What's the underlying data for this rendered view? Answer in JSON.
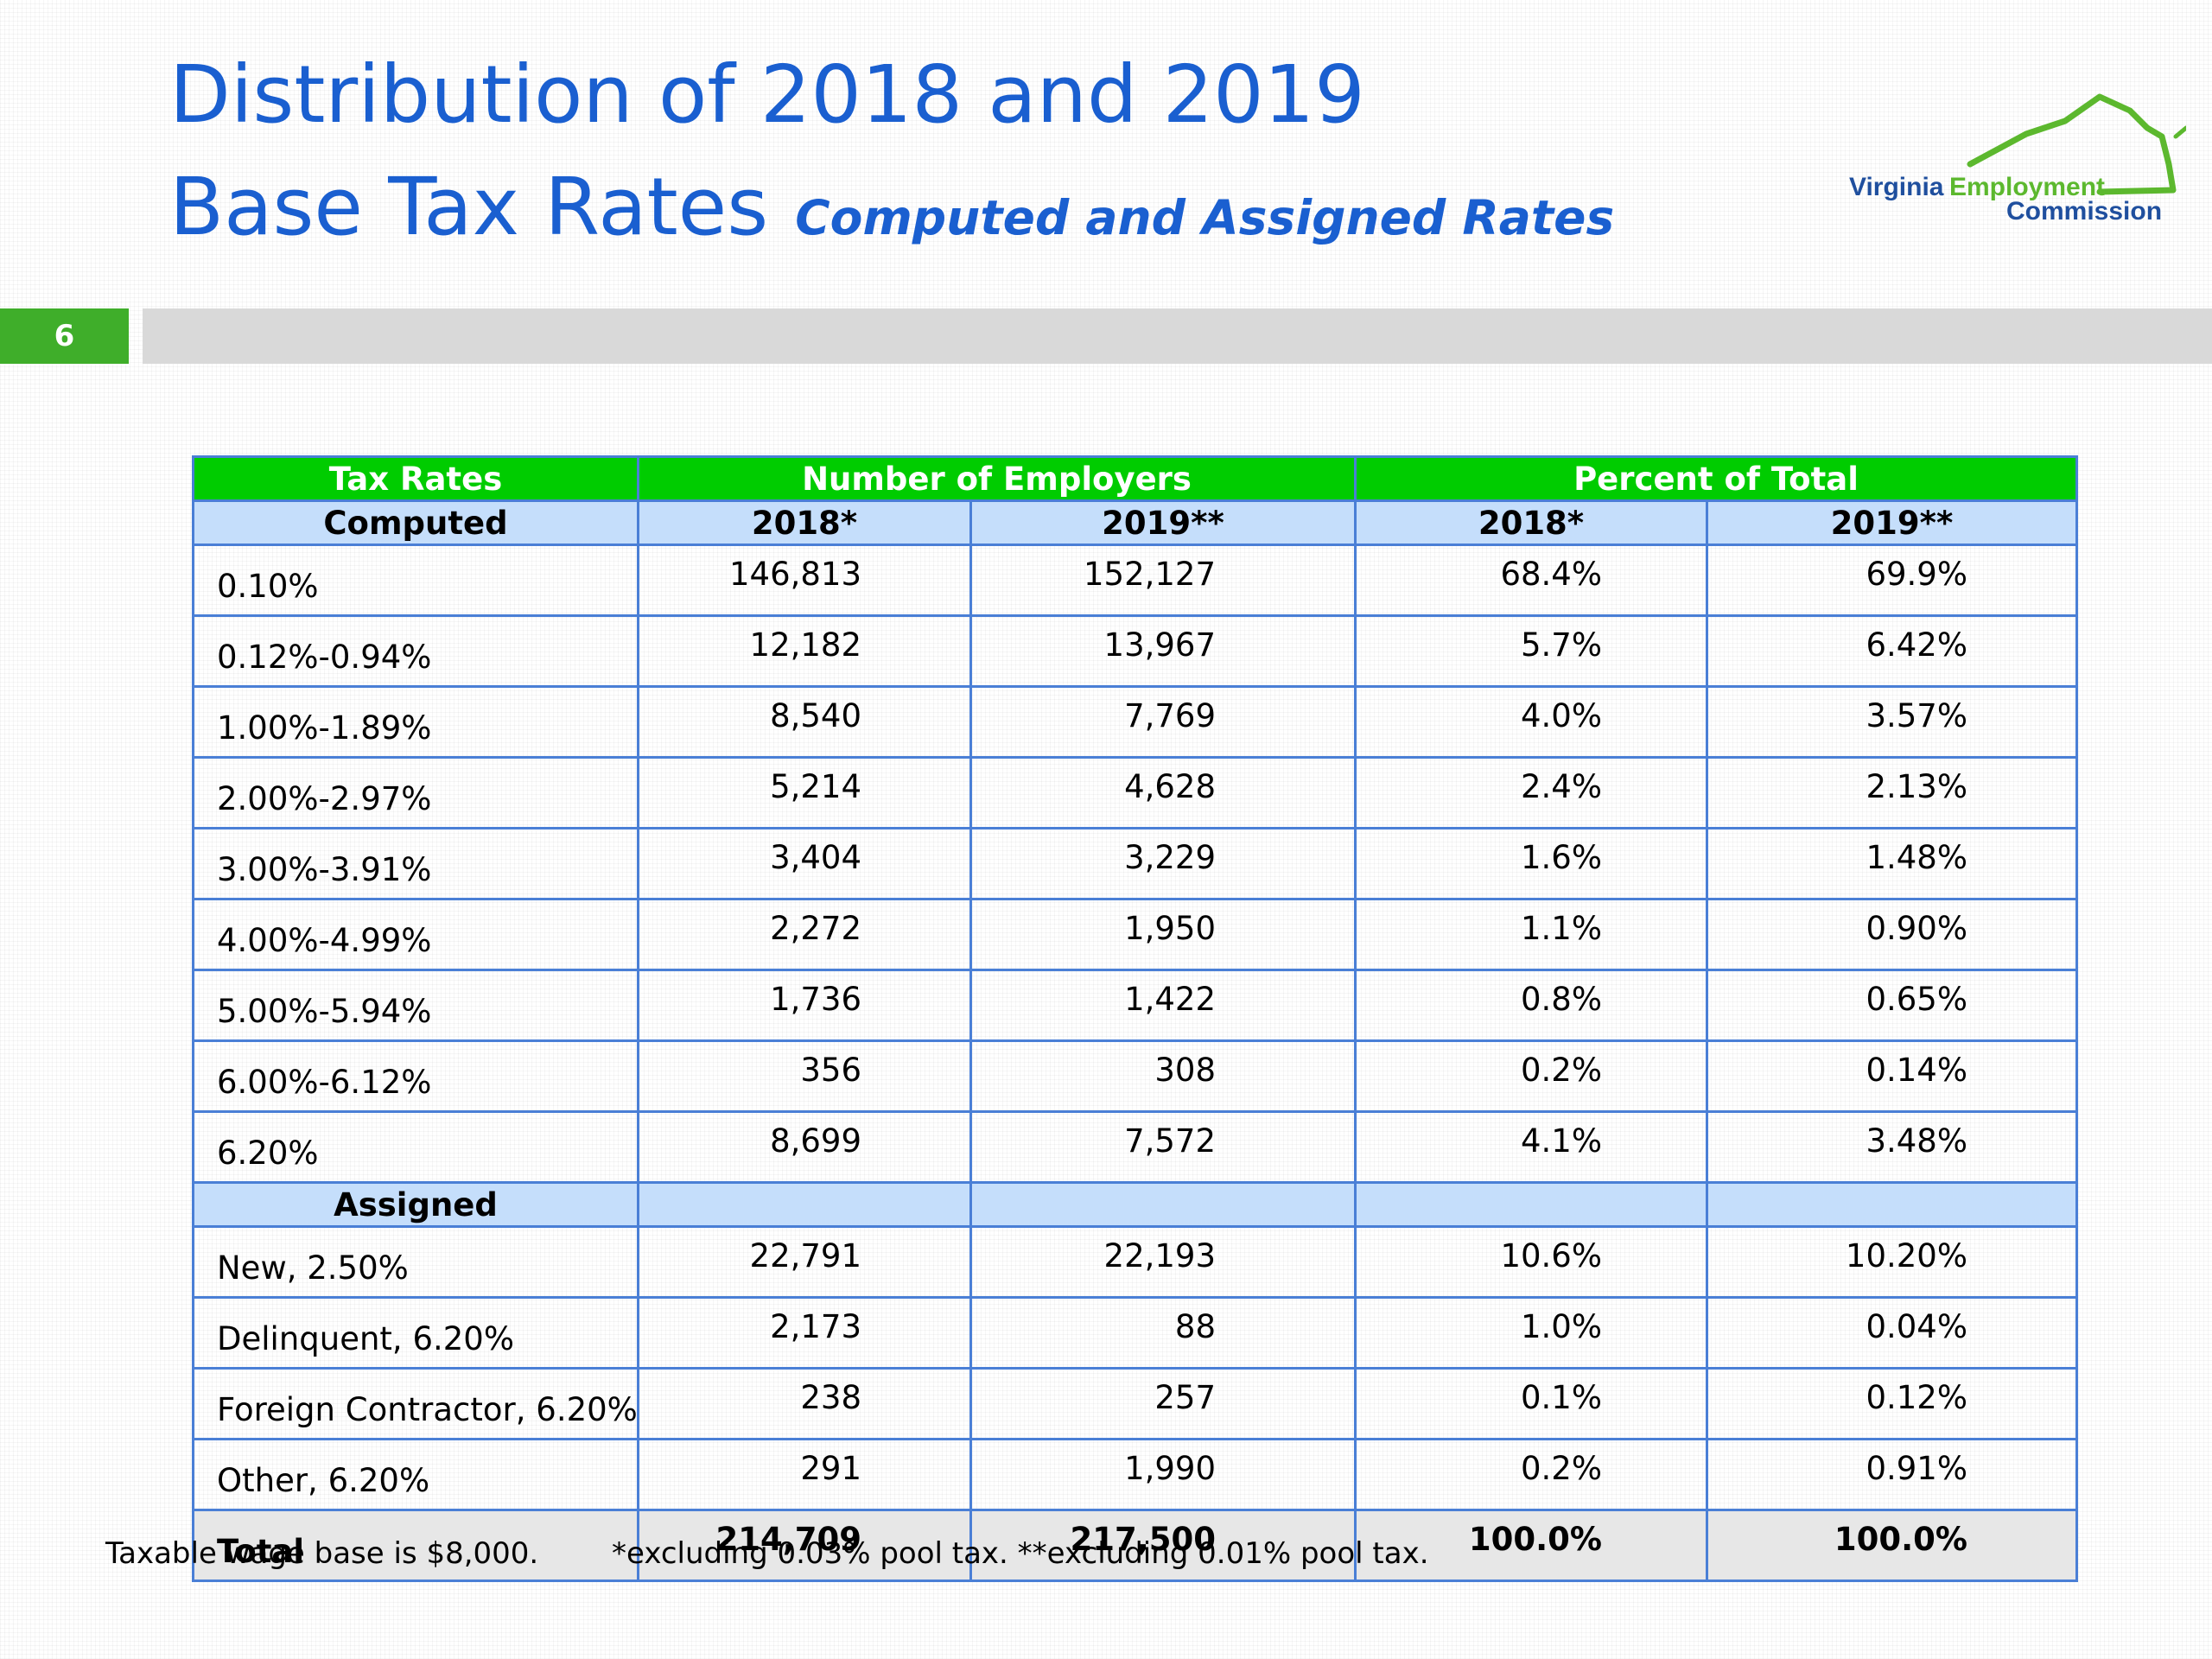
{
  "title": {
    "line1": "Distribution of 2018 and 2019",
    "line2": "Base Tax Rates",
    "subtitle": "Computed and Assigned Rates"
  },
  "logo": {
    "word1": "Virginia",
    "word2": "Employment",
    "word3": "Commission"
  },
  "slide_number": "6",
  "colors": {
    "title_blue": "#1a5fd0",
    "header_green": "#00cc00",
    "subheader_blue": "#c5defb",
    "border_blue": "#4a7fd6",
    "slide_green": "#3fae2a"
  },
  "table": {
    "group_headers": [
      "Tax Rates",
      "Number of Employers",
      "Percent of Total"
    ],
    "sub_headers": [
      "Computed",
      "2018*",
      "2019**",
      "2018*",
      "2019**"
    ],
    "computed_rows": [
      [
        "0.10%",
        "146,813",
        "152,127",
        "68.4%",
        "69.9%"
      ],
      [
        "0.12%-0.94%",
        "12,182",
        "13,967",
        "5.7%",
        "6.42%"
      ],
      [
        "1.00%-1.89%",
        "8,540",
        "7,769",
        "4.0%",
        "3.57%"
      ],
      [
        "2.00%-2.97%",
        "5,214",
        "4,628",
        "2.4%",
        "2.13%"
      ],
      [
        "3.00%-3.91%",
        "3,404",
        "3,229",
        "1.6%",
        "1.48%"
      ],
      [
        "4.00%-4.99%",
        "2,272",
        "1,950",
        "1.1%",
        "0.90%"
      ],
      [
        "5.00%-5.94%",
        "1,736",
        "1,422",
        "0.8%",
        "0.65%"
      ],
      [
        "6.00%-6.12%",
        "356",
        "308",
        "0.2%",
        "0.14%"
      ],
      [
        "6.20%",
        "8,699",
        "7,572",
        "4.1%",
        "3.48%"
      ]
    ],
    "assigned_label": "Assigned",
    "assigned_rows": [
      [
        "New, 2.50%",
        "22,791",
        "22,193",
        "10.6%",
        "10.20%"
      ],
      [
        "Delinquent, 6.20%",
        "2,173",
        "88",
        "1.0%",
        "0.04%"
      ],
      [
        "Foreign Contractor, 6.20%",
        "238",
        "257",
        "0.1%",
        "0.12%"
      ],
      [
        "Other, 6.20%",
        "291",
        "1,990",
        "0.2%",
        "0.91%"
      ]
    ],
    "total_row": [
      "Total",
      "214,709",
      "217,500",
      "100.0%",
      "100.0%"
    ]
  },
  "footnotes": {
    "wage_base": "Taxable wage base is $8,000.",
    "pool_tax": "*excluding 0.03% pool tax. **excluding 0.01% pool tax."
  }
}
